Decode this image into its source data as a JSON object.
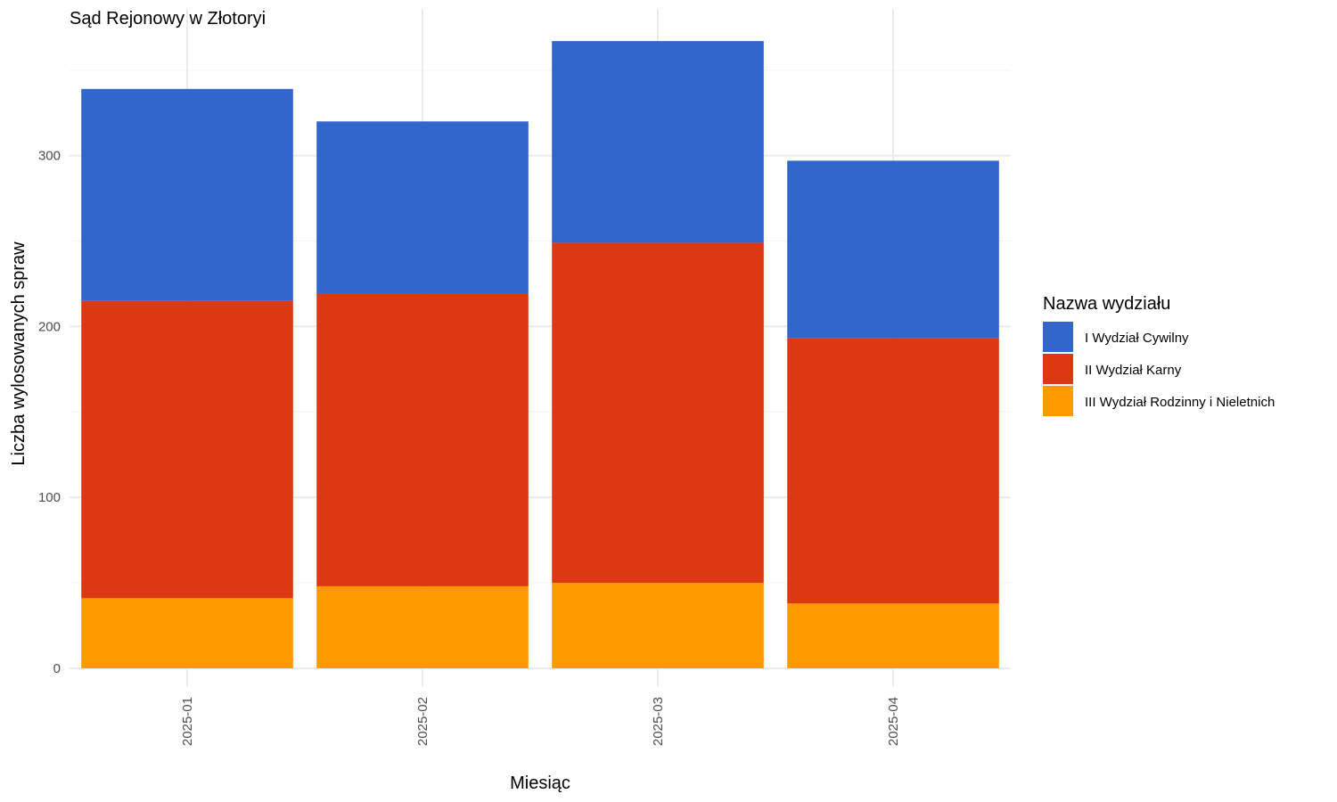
{
  "chart_data": {
    "type": "bar",
    "stacked": true,
    "title": "Sąd Rejonowy w Złotoryi",
    "xlabel": "Miesiąc",
    "ylabel": "Liczba wylosowanych spraw",
    "categories": [
      "2025-01",
      "2025-02",
      "2025-03",
      "2025-04"
    ],
    "ylim": [
      0,
      385
    ],
    "yticks": [
      0,
      100,
      200,
      300
    ],
    "grid": true,
    "legend_title": "Nazwa wydziału",
    "legend_position": "right",
    "series": [
      {
        "name": "III Wydział Rodzinny i Nieletnich",
        "color": "#FF9900",
        "values": [
          41,
          48,
          50,
          38
        ]
      },
      {
        "name": "II Wydział Karny",
        "color": "#DC3912",
        "values": [
          174,
          171,
          199,
          155
        ]
      },
      {
        "name": "I Wydział Cywilny",
        "color": "#3366CC",
        "values": [
          124,
          101,
          118,
          104
        ]
      }
    ],
    "legend_order": [
      "I Wydział Cywilny",
      "II Wydział Karny",
      "III Wydział Rodzinny i Nieletnich"
    ]
  }
}
